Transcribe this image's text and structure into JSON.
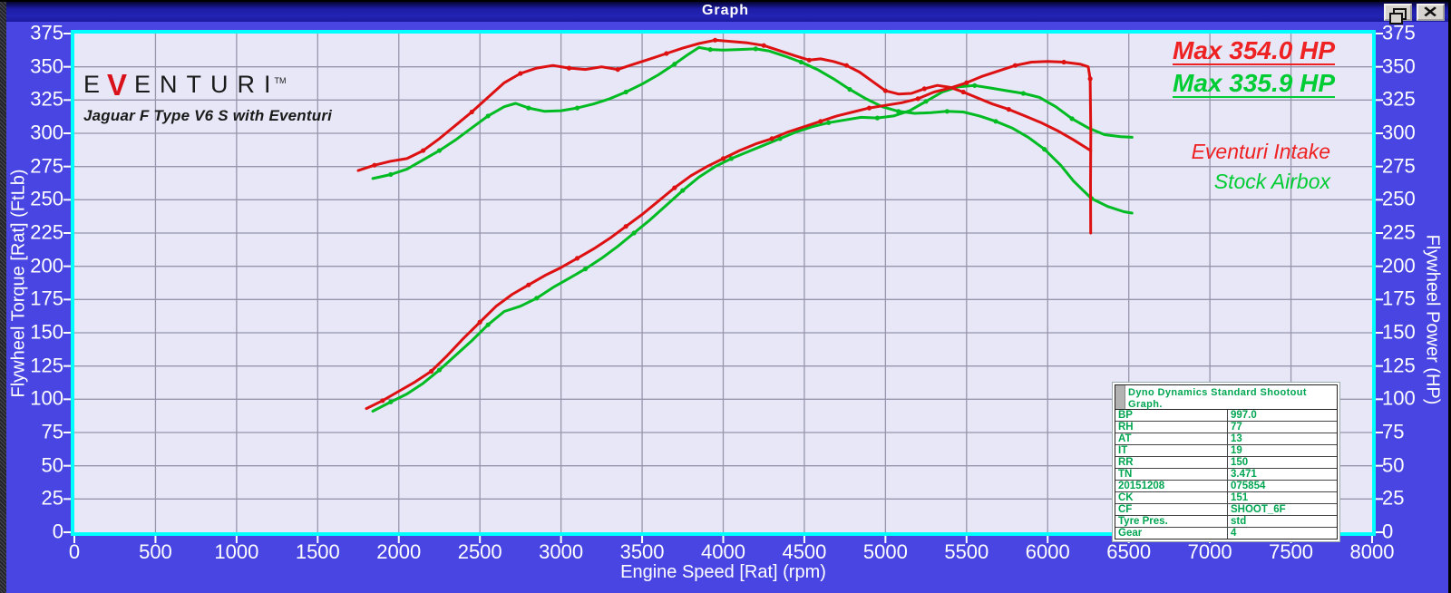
{
  "window": {
    "title": "Graph",
    "restore_button": "restore",
    "close_button": "close"
  },
  "branding": {
    "logo_e": "E",
    "logo_v": "V",
    "logo_rest": "ENTURI",
    "trademark": "TM",
    "subtitle": "Jaguar F Type V6 S with Eventuri"
  },
  "annotations": {
    "max_red": "Max 354.0 HP",
    "max_green": "Max 335.9 HP",
    "legend_red": "Eventuri Intake",
    "legend_green": "Stock Airbox"
  },
  "info_table": {
    "header": "Dyno Dynamics Standard Shootout Graph.",
    "rows": [
      [
        "BP",
        "997.0"
      ],
      [
        "RH",
        "77"
      ],
      [
        "AT",
        "13"
      ],
      [
        "IT",
        "19"
      ],
      [
        "RR",
        "150"
      ],
      [
        "TN",
        "3.471"
      ],
      [
        "20151208",
        "075854"
      ],
      [
        "CK",
        "151"
      ],
      [
        "CF",
        "SHOOT_6F"
      ],
      [
        "Tyre Pres.",
        "std"
      ],
      [
        "Gear",
        "4"
      ]
    ]
  },
  "colors": {
    "accent_red": "#dd1111",
    "accent_green": "#00bb22",
    "max_red_text": "#ee2222",
    "max_green_text": "#00cc33",
    "frame_cyan": "#00ffff",
    "plot_bg": "#e7e7f7",
    "grid": "#9696ac",
    "window_bg": "#4845e2",
    "table_green": "#00a651"
  },
  "chart_data": {
    "type": "line",
    "xlabel": "Engine Speed [Rat] (rpm)",
    "ylabel_left": "Flywheel Torque [Rat] (FtLb)",
    "ylabel_right": "Flywheel Power (HP)",
    "xlim": [
      0,
      8000
    ],
    "ylim": [
      0,
      375
    ],
    "x_tick_step": 500,
    "y_tick_step": 25,
    "grid": true,
    "legend_position": "top-right",
    "series": [
      {
        "name": "Stock Airbox - Power (HP)",
        "color": "#00bb22",
        "points": [
          [
            1840,
            91
          ],
          [
            1950,
            98
          ],
          [
            2050,
            104
          ],
          [
            2150,
            112
          ],
          [
            2250,
            122
          ],
          [
            2350,
            133
          ],
          [
            2450,
            144
          ],
          [
            2550,
            156
          ],
          [
            2650,
            166
          ],
          [
            2750,
            170
          ],
          [
            2850,
            176
          ],
          [
            2950,
            184
          ],
          [
            3050,
            191
          ],
          [
            3150,
            198
          ],
          [
            3250,
            206
          ],
          [
            3350,
            215
          ],
          [
            3450,
            225
          ],
          [
            3550,
            235
          ],
          [
            3650,
            246
          ],
          [
            3750,
            257
          ],
          [
            3850,
            267
          ],
          [
            3950,
            275
          ],
          [
            4050,
            281
          ],
          [
            4150,
            286
          ],
          [
            4250,
            291
          ],
          [
            4350,
            296
          ],
          [
            4450,
            301
          ],
          [
            4550,
            305
          ],
          [
            4650,
            308
          ],
          [
            4750,
            310
          ],
          [
            4850,
            312
          ],
          [
            4950,
            311.5
          ],
          [
            5050,
            313
          ],
          [
            5150,
            317
          ],
          [
            5250,
            324
          ],
          [
            5350,
            331
          ],
          [
            5450,
            335
          ],
          [
            5550,
            335.9
          ],
          [
            5650,
            334
          ],
          [
            5750,
            332
          ],
          [
            5850,
            330
          ],
          [
            5950,
            327
          ],
          [
            6050,
            320
          ],
          [
            6150,
            311
          ],
          [
            6250,
            304
          ],
          [
            6350,
            299
          ],
          [
            6450,
            297.5
          ],
          [
            6520,
            297
          ]
        ]
      },
      {
        "name": "Stock Airbox - Torque (FtLb)",
        "color": "#00bb22",
        "points": [
          [
            1840,
            266
          ],
          [
            1950,
            269
          ],
          [
            2050,
            273
          ],
          [
            2150,
            280
          ],
          [
            2250,
            287
          ],
          [
            2350,
            295
          ],
          [
            2450,
            304
          ],
          [
            2550,
            313
          ],
          [
            2650,
            320
          ],
          [
            2720,
            322.5
          ],
          [
            2800,
            319
          ],
          [
            2900,
            316.5
          ],
          [
            3000,
            317
          ],
          [
            3100,
            319
          ],
          [
            3200,
            322
          ],
          [
            3300,
            326
          ],
          [
            3400,
            331
          ],
          [
            3500,
            337
          ],
          [
            3600,
            344
          ],
          [
            3700,
            352
          ],
          [
            3780,
            359
          ],
          [
            3850,
            364.5
          ],
          [
            3920,
            363
          ],
          [
            4000,
            362.5
          ],
          [
            4100,
            363
          ],
          [
            4200,
            363.5
          ],
          [
            4280,
            362
          ],
          [
            4380,
            358
          ],
          [
            4480,
            353.5
          ],
          [
            4580,
            348
          ],
          [
            4680,
            341
          ],
          [
            4780,
            333
          ],
          [
            4880,
            326
          ],
          [
            4980,
            320
          ],
          [
            5080,
            316.5
          ],
          [
            5180,
            315
          ],
          [
            5280,
            315.5
          ],
          [
            5380,
            316.5
          ],
          [
            5480,
            316
          ],
          [
            5580,
            313
          ],
          [
            5680,
            309
          ],
          [
            5780,
            304
          ],
          [
            5880,
            297
          ],
          [
            5980,
            288
          ],
          [
            6080,
            276
          ],
          [
            6160,
            264
          ],
          [
            6270,
            251
          ],
          [
            6370,
            245
          ],
          [
            6470,
            241
          ],
          [
            6520,
            240
          ]
        ]
      },
      {
        "name": "Eventuri Intake - Power (HP)",
        "color": "#dd1111",
        "points": [
          [
            1800,
            93
          ],
          [
            1900,
            99
          ],
          [
            2000,
            106
          ],
          [
            2100,
            113
          ],
          [
            2200,
            121
          ],
          [
            2300,
            133
          ],
          [
            2400,
            146
          ],
          [
            2500,
            158
          ],
          [
            2600,
            170
          ],
          [
            2700,
            179
          ],
          [
            2800,
            186
          ],
          [
            2900,
            193
          ],
          [
            3000,
            199
          ],
          [
            3100,
            206
          ],
          [
            3200,
            213
          ],
          [
            3300,
            221
          ],
          [
            3400,
            230
          ],
          [
            3500,
            239
          ],
          [
            3600,
            249
          ],
          [
            3700,
            259
          ],
          [
            3800,
            268
          ],
          [
            3900,
            275
          ],
          [
            4000,
            281
          ],
          [
            4100,
            287
          ],
          [
            4200,
            292
          ],
          [
            4300,
            296
          ],
          [
            4400,
            301
          ],
          [
            4500,
            305
          ],
          [
            4600,
            309
          ],
          [
            4700,
            313
          ],
          [
            4800,
            316
          ],
          [
            4900,
            319
          ],
          [
            5000,
            321
          ],
          [
            5100,
            323
          ],
          [
            5200,
            326
          ],
          [
            5300,
            331
          ],
          [
            5400,
            334
          ],
          [
            5500,
            338
          ],
          [
            5600,
            343
          ],
          [
            5700,
            347
          ],
          [
            5800,
            351
          ],
          [
            5900,
            353.5
          ],
          [
            6000,
            354
          ],
          [
            6100,
            353.5
          ],
          [
            6200,
            352
          ],
          [
            6250,
            350
          ],
          [
            6262,
            341
          ],
          [
            6266,
            300
          ],
          [
            6264,
            262
          ],
          [
            6265,
            225
          ]
        ]
      },
      {
        "name": "Eventuri Intake - Torque (FtLb)",
        "color": "#dd1111",
        "points": [
          [
            1750,
            272
          ],
          [
            1850,
            276
          ],
          [
            1950,
            279
          ],
          [
            2050,
            281
          ],
          [
            2150,
            287
          ],
          [
            2250,
            296
          ],
          [
            2350,
            306
          ],
          [
            2450,
            316
          ],
          [
            2550,
            327
          ],
          [
            2650,
            338
          ],
          [
            2750,
            345
          ],
          [
            2850,
            349
          ],
          [
            2950,
            351
          ],
          [
            3050,
            349
          ],
          [
            3150,
            348
          ],
          [
            3250,
            350
          ],
          [
            3350,
            348
          ],
          [
            3450,
            352
          ],
          [
            3550,
            356
          ],
          [
            3650,
            360
          ],
          [
            3750,
            364
          ],
          [
            3850,
            367.5
          ],
          [
            3950,
            370
          ],
          [
            4050,
            369
          ],
          [
            4150,
            368
          ],
          [
            4250,
            366
          ],
          [
            4350,
            362
          ],
          [
            4450,
            358
          ],
          [
            4530,
            355
          ],
          [
            4600,
            356
          ],
          [
            4680,
            354
          ],
          [
            4760,
            351
          ],
          [
            4840,
            346
          ],
          [
            4920,
            339
          ],
          [
            5000,
            332
          ],
          [
            5080,
            329.5
          ],
          [
            5160,
            330
          ],
          [
            5240,
            333.5
          ],
          [
            5320,
            336
          ],
          [
            5400,
            334.5
          ],
          [
            5480,
            331
          ],
          [
            5560,
            327
          ],
          [
            5660,
            322
          ],
          [
            5760,
            318
          ],
          [
            5860,
            313
          ],
          [
            5960,
            308
          ],
          [
            6060,
            302
          ],
          [
            6160,
            295
          ],
          [
            6265,
            287
          ]
        ]
      }
    ]
  }
}
